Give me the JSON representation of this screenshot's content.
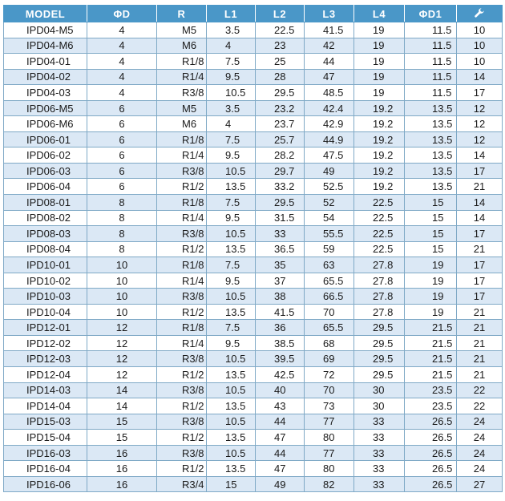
{
  "table": {
    "headers": {
      "model": "MODEL",
      "od": "ΦD",
      "r": "R",
      "l1": "L1",
      "l2": "L2",
      "l3": "L3",
      "l4": "L4",
      "od1": "ΦD1",
      "wrench_icon": "wrench-icon"
    },
    "rows": [
      [
        "IPD04-M5",
        "4",
        "M5",
        "3.5",
        "22.5",
        "41.5",
        "19",
        "11.5",
        "10"
      ],
      [
        "IPD04-M6",
        "4",
        "M6",
        "4",
        "23",
        "42",
        "19",
        "11.5",
        "10"
      ],
      [
        "IPD04-01",
        "4",
        "R1/8",
        "7.5",
        "25",
        "44",
        "19",
        "11.5",
        "10"
      ],
      [
        "IPD04-02",
        "4",
        "R1/4",
        "9.5",
        "28",
        "47",
        "19",
        "11.5",
        "14"
      ],
      [
        "IPD04-03",
        "4",
        "R3/8",
        "10.5",
        "29.5",
        "48.5",
        "19",
        "11.5",
        "17"
      ],
      [
        "IPD06-M5",
        "6",
        "M5",
        "3.5",
        "23.2",
        "42.4",
        "19.2",
        "13.5",
        "12"
      ],
      [
        "IPD06-M6",
        "6",
        "M6",
        "4",
        "23.7",
        "42.9",
        "19.2",
        "13.5",
        "12"
      ],
      [
        "IPD06-01",
        "6",
        "R1/8",
        "7.5",
        "25.7",
        "44.9",
        "19.2",
        "13.5",
        "12"
      ],
      [
        "IPD06-02",
        "6",
        "R1/4",
        "9.5",
        "28.2",
        "47.5",
        "19.2",
        "13.5",
        "14"
      ],
      [
        "IPD06-03",
        "6",
        "R3/8",
        "10.5",
        "29.7",
        "49",
        "19.2",
        "13.5",
        "17"
      ],
      [
        "IPD06-04",
        "6",
        "R1/2",
        "13.5",
        "33.2",
        "52.5",
        "19.2",
        "13.5",
        "21"
      ],
      [
        "IPD08-01",
        "8",
        "R1/8",
        "7.5",
        "29.5",
        "52",
        "22.5",
        "15",
        "14"
      ],
      [
        "IPD08-02",
        "8",
        "R1/4",
        "9.5",
        "31.5",
        "54",
        "22.5",
        "15",
        "14"
      ],
      [
        "IPD08-03",
        "8",
        "R3/8",
        "10.5",
        "33",
        "55.5",
        "22.5",
        "15",
        "17"
      ],
      [
        "IPD08-04",
        "8",
        "R1/2",
        "13.5",
        "36.5",
        "59",
        "22.5",
        "15",
        "21"
      ],
      [
        "IPD10-01",
        "10",
        "R1/8",
        "7.5",
        "35",
        "63",
        "27.8",
        "19",
        "17"
      ],
      [
        "IPD10-02",
        "10",
        "R1/4",
        "9.5",
        "37",
        "65.5",
        "27.8",
        "19",
        "17"
      ],
      [
        "IPD10-03",
        "10",
        "R3/8",
        "10.5",
        "38",
        "66.5",
        "27.8",
        "19",
        "17"
      ],
      [
        "IPD10-04",
        "10",
        "R1/2",
        "13.5",
        "41.5",
        "70",
        "27.8",
        "19",
        "21"
      ],
      [
        "IPD12-01",
        "12",
        "R1/8",
        "7.5",
        "36",
        "65.5",
        "29.5",
        "21.5",
        "21"
      ],
      [
        "IPD12-02",
        "12",
        "R1/4",
        "9.5",
        "38.5",
        "68",
        "29.5",
        "21.5",
        "21"
      ],
      [
        "IPD12-03",
        "12",
        "R3/8",
        "10.5",
        "39.5",
        "69",
        "29.5",
        "21.5",
        "21"
      ],
      [
        "IPD12-04",
        "12",
        "R1/2",
        "13.5",
        "42.5",
        "72",
        "29.5",
        "21.5",
        "21"
      ],
      [
        "IPD14-03",
        "14",
        "R3/8",
        "10.5",
        "40",
        "70",
        "30",
        "23.5",
        "22"
      ],
      [
        "IPD14-04",
        "14",
        "R1/2",
        "13.5",
        "43",
        "73",
        "30",
        "23.5",
        "22"
      ],
      [
        "IPD15-03",
        "15",
        "R3/8",
        "10.5",
        "44",
        "77",
        "33",
        "26.5",
        "24"
      ],
      [
        "IPD15-04",
        "15",
        "R1/2",
        "13.5",
        "47",
        "80",
        "33",
        "26.5",
        "24"
      ],
      [
        "IPD16-03",
        "16",
        "R3/8",
        "10.5",
        "44",
        "77",
        "33",
        "26.5",
        "24"
      ],
      [
        "IPD16-04",
        "16",
        "R1/2",
        "13.5",
        "47",
        "80",
        "33",
        "26.5",
        "24"
      ],
      [
        "IPD16-06",
        "16",
        "R3/4",
        "15",
        "49",
        "82",
        "33",
        "26.5",
        "27"
      ]
    ]
  },
  "colors": {
    "header_bg": "#4a97c8",
    "row_alt_bg": "#dbe8f5",
    "border": "#7fa9c6"
  }
}
